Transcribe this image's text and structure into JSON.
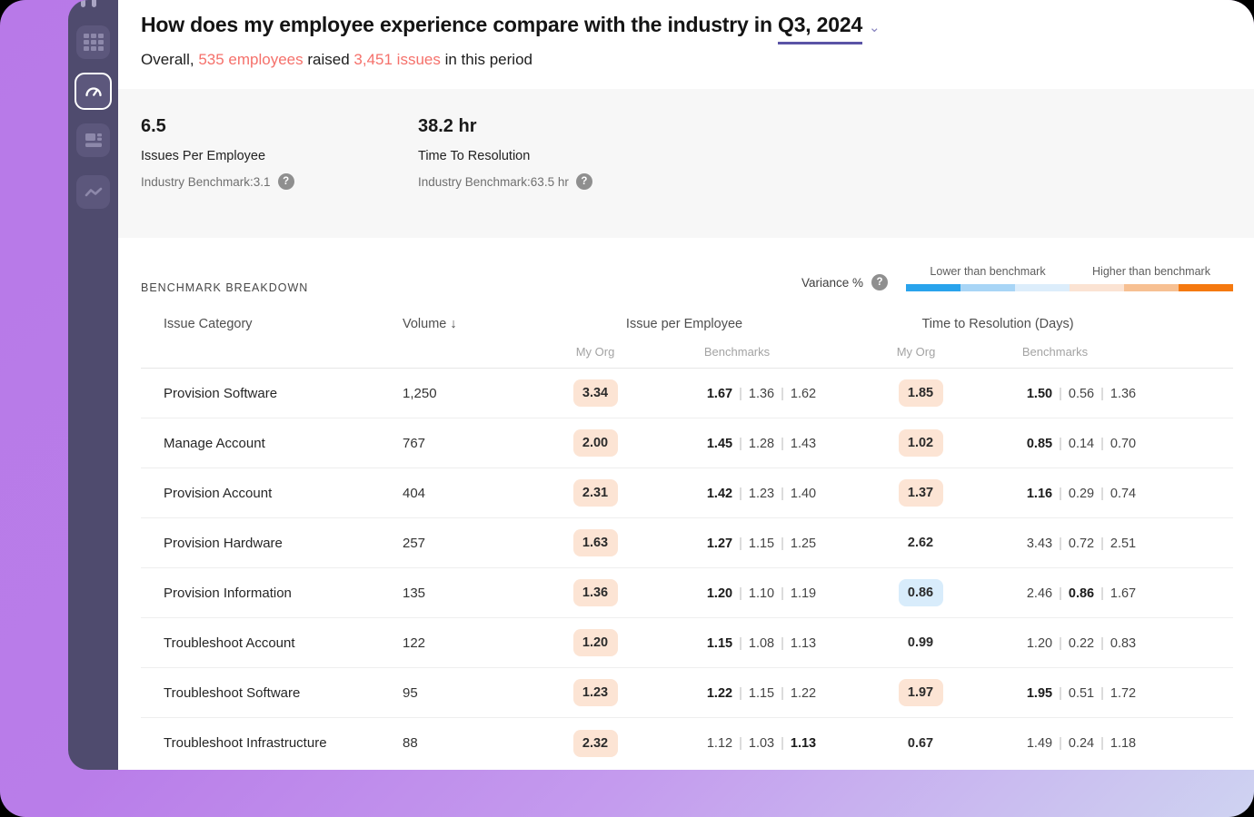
{
  "colors": {
    "accent_red": "#f5716b",
    "underline_purple": "#5a54a6",
    "chip_orange": "#fce4d4",
    "chip_blue": "#d8ecfb",
    "sidebar_bg": "#4f4b6e",
    "kpi_band_bg": "#f7f7f7"
  },
  "sidebar": {
    "icons": [
      "logo",
      "grid",
      "gauge",
      "layout-cards",
      "trend-line"
    ],
    "selected": "gauge"
  },
  "header": {
    "title_prefix": "How does my employee experience compare with the industry in",
    "period": "Q3, 2024",
    "chevron": "⌄",
    "subtitle": {
      "prefix": "Overall,",
      "employees": "535 employees",
      "middle": "raised",
      "issues": "3,451 issues",
      "suffix": "in this period"
    }
  },
  "kpis": [
    {
      "value": "6.5",
      "label": "Issues Per Employee",
      "benchmark": "Industry Benchmark:3.1"
    },
    {
      "value": "38.2 hr",
      "label": "Time To Resolution",
      "benchmark": "Industry Benchmark:63.5 hr"
    }
  ],
  "breakdown": {
    "section_title": "BENCHMARK BREAKDOWN",
    "variance_label": "Variance %",
    "legend": {
      "lower_label": "Lower than benchmark",
      "higher_label": "Higher than benchmark",
      "segment_colors": [
        "#29a3ec",
        "#a8d5f6",
        "#dcedfb",
        "#fbe3d3",
        "#f7c092",
        "#f5790f"
      ]
    },
    "columns": {
      "category": "Issue Category",
      "volume": "Volume ↓",
      "ipe_group": "Issue per Employee",
      "ttr_group": "Time to Resolution (Days)",
      "my_org": "My Org",
      "benchmarks": "Benchmarks"
    },
    "rows": [
      {
        "category": "Provision Software",
        "volume": "1,250",
        "ipe_my_org": {
          "value": "3.34",
          "highlight": "orange"
        },
        "ipe_benchmarks": [
          {
            "value": "1.67",
            "bold": true
          },
          {
            "value": "1.36",
            "bold": false
          },
          {
            "value": "1.62",
            "bold": false
          }
        ],
        "ttr_my_org": {
          "value": "1.85",
          "highlight": "orange"
        },
        "ttr_benchmarks": [
          {
            "value": "1.50",
            "bold": true
          },
          {
            "value": "0.56",
            "bold": false
          },
          {
            "value": "1.36",
            "bold": false
          }
        ]
      },
      {
        "category": "Manage Account",
        "volume": "767",
        "ipe_my_org": {
          "value": "2.00",
          "highlight": "orange"
        },
        "ipe_benchmarks": [
          {
            "value": "1.45",
            "bold": true
          },
          {
            "value": "1.28",
            "bold": false
          },
          {
            "value": "1.43",
            "bold": false
          }
        ],
        "ttr_my_org": {
          "value": "1.02",
          "highlight": "orange"
        },
        "ttr_benchmarks": [
          {
            "value": "0.85",
            "bold": true
          },
          {
            "value": "0.14",
            "bold": false
          },
          {
            "value": "0.70",
            "bold": false
          }
        ]
      },
      {
        "category": "Provision Account",
        "volume": "404",
        "ipe_my_org": {
          "value": "2.31",
          "highlight": "orange"
        },
        "ipe_benchmarks": [
          {
            "value": "1.42",
            "bold": true
          },
          {
            "value": "1.23",
            "bold": false
          },
          {
            "value": "1.40",
            "bold": false
          }
        ],
        "ttr_my_org": {
          "value": "1.37",
          "highlight": "orange"
        },
        "ttr_benchmarks": [
          {
            "value": "1.16",
            "bold": true
          },
          {
            "value": "0.29",
            "bold": false
          },
          {
            "value": "0.74",
            "bold": false
          }
        ]
      },
      {
        "category": "Provision Hardware",
        "volume": "257",
        "ipe_my_org": {
          "value": "1.63",
          "highlight": "orange"
        },
        "ipe_benchmarks": [
          {
            "value": "1.27",
            "bold": true
          },
          {
            "value": "1.15",
            "bold": false
          },
          {
            "value": "1.25",
            "bold": false
          }
        ],
        "ttr_my_org": {
          "value": "2.62",
          "highlight": "none"
        },
        "ttr_benchmarks": [
          {
            "value": "3.43",
            "bold": false
          },
          {
            "value": "0.72",
            "bold": false
          },
          {
            "value": "2.51",
            "bold": false
          }
        ]
      },
      {
        "category": "Provision Information",
        "volume": "135",
        "ipe_my_org": {
          "value": "1.36",
          "highlight": "orange"
        },
        "ipe_benchmarks": [
          {
            "value": "1.20",
            "bold": true
          },
          {
            "value": "1.10",
            "bold": false
          },
          {
            "value": "1.19",
            "bold": false
          }
        ],
        "ttr_my_org": {
          "value": "0.86",
          "highlight": "blue"
        },
        "ttr_benchmarks": [
          {
            "value": "2.46",
            "bold": false
          },
          {
            "value": "0.86",
            "bold": true
          },
          {
            "value": "1.67",
            "bold": false
          }
        ]
      },
      {
        "category": "Troubleshoot Account",
        "volume": "122",
        "ipe_my_org": {
          "value": "1.20",
          "highlight": "orange"
        },
        "ipe_benchmarks": [
          {
            "value": "1.15",
            "bold": true
          },
          {
            "value": "1.08",
            "bold": false
          },
          {
            "value": "1.13",
            "bold": false
          }
        ],
        "ttr_my_org": {
          "value": "0.99",
          "highlight": "none"
        },
        "ttr_benchmarks": [
          {
            "value": "1.20",
            "bold": false
          },
          {
            "value": "0.22",
            "bold": false
          },
          {
            "value": "0.83",
            "bold": false
          }
        ]
      },
      {
        "category": "Troubleshoot Software",
        "volume": "95",
        "ipe_my_org": {
          "value": "1.23",
          "highlight": "orange"
        },
        "ipe_benchmarks": [
          {
            "value": "1.22",
            "bold": true
          },
          {
            "value": "1.15",
            "bold": false
          },
          {
            "value": "1.22",
            "bold": false
          }
        ],
        "ttr_my_org": {
          "value": "1.97",
          "highlight": "orange"
        },
        "ttr_benchmarks": [
          {
            "value": "1.95",
            "bold": true
          },
          {
            "value": "0.51",
            "bold": false
          },
          {
            "value": "1.72",
            "bold": false
          }
        ]
      },
      {
        "category": "Troubleshoot Infrastructure",
        "volume": "88",
        "ipe_my_org": {
          "value": "2.32",
          "highlight": "orange"
        },
        "ipe_benchmarks": [
          {
            "value": "1.12",
            "bold": false
          },
          {
            "value": "1.03",
            "bold": false
          },
          {
            "value": "1.13",
            "bold": true
          }
        ],
        "ttr_my_org": {
          "value": "0.67",
          "highlight": "none"
        },
        "ttr_benchmarks": [
          {
            "value": "1.49",
            "bold": false
          },
          {
            "value": "0.24",
            "bold": false
          },
          {
            "value": "1.18",
            "bold": false
          }
        ]
      }
    ]
  }
}
